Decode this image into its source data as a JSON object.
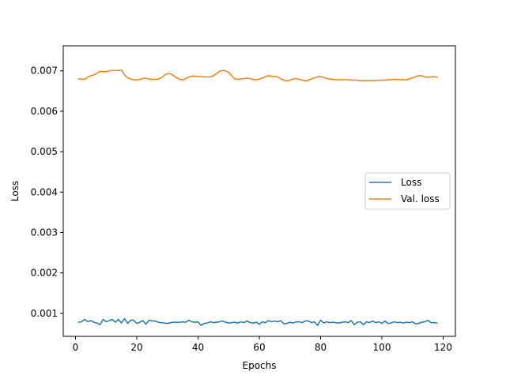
{
  "chart_data": {
    "type": "line",
    "title": "",
    "xlabel": "Epochs",
    "ylabel": "Loss",
    "xlim": [
      -4,
      124
    ],
    "ylim": [
      0.00043,
      0.00762
    ],
    "xticks": [
      0,
      20,
      40,
      60,
      80,
      100,
      120
    ],
    "yticks": [
      0.001,
      0.002,
      0.003,
      0.004,
      0.005,
      0.006,
      0.007
    ],
    "ytick_labels": [
      "0.001",
      "0.002",
      "0.003",
      "0.004",
      "0.005",
      "0.006",
      "0.007"
    ],
    "grid": false,
    "legend": "center-right",
    "series": [
      {
        "name": "Loss",
        "color": "#1f77b4",
        "x": [
          1,
          2,
          3,
          4,
          5,
          6,
          7,
          8,
          9,
          10,
          11,
          12,
          13,
          14,
          15,
          16,
          17,
          18,
          19,
          20,
          21,
          22,
          23,
          24,
          25,
          26,
          27,
          28,
          29,
          30,
          31,
          32,
          33,
          34,
          35,
          36,
          37,
          38,
          39,
          40,
          41,
          42,
          43,
          44,
          45,
          46,
          47,
          48,
          49,
          50,
          51,
          52,
          53,
          54,
          55,
          56,
          57,
          58,
          59,
          60,
          61,
          62,
          63,
          64,
          65,
          66,
          67,
          68,
          69,
          70,
          71,
          72,
          73,
          74,
          75,
          76,
          77,
          78,
          79,
          80,
          81,
          82,
          83,
          84,
          85,
          86,
          87,
          88,
          89,
          90,
          91,
          92,
          93,
          94,
          95,
          96,
          97,
          98,
          99,
          100,
          101,
          102,
          103,
          104,
          105,
          106,
          107,
          108,
          109,
          110,
          111,
          112,
          113,
          114,
          115,
          116,
          117,
          118
        ],
        "y": [
          0.00078,
          0.00079,
          0.00085,
          0.00079,
          0.00082,
          0.00078,
          0.00076,
          0.00072,
          0.00085,
          0.00079,
          0.00082,
          0.00085,
          0.00078,
          0.00085,
          0.00076,
          0.00087,
          0.00075,
          0.00083,
          0.00083,
          0.00075,
          0.00078,
          0.00082,
          0.00073,
          0.00083,
          0.00081,
          0.00081,
          0.00078,
          0.00077,
          0.00076,
          0.00075,
          0.00077,
          0.00078,
          0.00078,
          0.00078,
          0.00079,
          0.00078,
          0.00083,
          0.00079,
          0.00078,
          0.00079,
          0.0007,
          0.00075,
          0.00076,
          0.00079,
          0.00077,
          0.00078,
          0.00079,
          0.00081,
          0.00078,
          0.00076,
          0.00077,
          0.00078,
          0.00076,
          0.00079,
          0.00077,
          0.00081,
          0.00077,
          0.00076,
          0.00078,
          0.00073,
          0.00079,
          0.00077,
          0.00082,
          0.00079,
          0.00081,
          0.00079,
          0.00082,
          0.00074,
          0.00075,
          0.00078,
          0.00076,
          0.00079,
          0.00079,
          0.00077,
          0.00081,
          0.00081,
          0.00077,
          0.00079,
          0.0007,
          0.00083,
          0.00076,
          0.00079,
          0.00077,
          0.00078,
          0.00077,
          0.00076,
          0.00078,
          0.00079,
          0.00077,
          0.00082,
          0.00072,
          0.00078,
          0.00079,
          0.00072,
          0.00079,
          0.00077,
          0.00081,
          0.00077,
          0.00079,
          0.00075,
          0.00081,
          0.00075,
          0.00076,
          0.00079,
          0.00077,
          0.00078,
          0.00076,
          0.00078,
          0.00077,
          0.00079,
          0.00074,
          0.00075,
          0.00078,
          0.00079,
          0.00083,
          0.00077,
          0.00077,
          0.00076
        ]
      },
      {
        "name": "Val. loss",
        "color": "#ff7f0e",
        "x": [
          1,
          2,
          3,
          4,
          5,
          6,
          7,
          8,
          9,
          10,
          11,
          12,
          13,
          14,
          15,
          16,
          17,
          18,
          19,
          20,
          21,
          22,
          23,
          24,
          25,
          26,
          27,
          28,
          29,
          30,
          31,
          32,
          33,
          34,
          35,
          36,
          37,
          38,
          39,
          40,
          41,
          42,
          43,
          44,
          45,
          46,
          47,
          48,
          49,
          50,
          51,
          52,
          53,
          54,
          55,
          56,
          57,
          58,
          59,
          60,
          61,
          62,
          63,
          64,
          65,
          66,
          67,
          68,
          69,
          70,
          71,
          72,
          73,
          74,
          75,
          76,
          77,
          78,
          79,
          80,
          81,
          82,
          83,
          84,
          85,
          86,
          87,
          88,
          89,
          90,
          91,
          92,
          93,
          94,
          95,
          96,
          97,
          98,
          99,
          100,
          101,
          102,
          103,
          104,
          105,
          106,
          107,
          108,
          109,
          110,
          111,
          112,
          113,
          114,
          115,
          116,
          117,
          118
        ],
        "y": [
          0.0068,
          0.0068,
          0.00679,
          0.00685,
          0.00688,
          0.0069,
          0.00694,
          0.00699,
          0.00698,
          0.00698,
          0.007,
          0.00701,
          0.00701,
          0.00701,
          0.00702,
          0.0069,
          0.00683,
          0.0068,
          0.00678,
          0.00678,
          0.00679,
          0.00681,
          0.00682,
          0.0068,
          0.00679,
          0.00679,
          0.0068,
          0.00683,
          0.00689,
          0.00693,
          0.00693,
          0.00688,
          0.00683,
          0.00679,
          0.00678,
          0.00681,
          0.00685,
          0.00687,
          0.00687,
          0.00686,
          0.00686,
          0.00685,
          0.00685,
          0.00685,
          0.00688,
          0.00693,
          0.00699,
          0.00701,
          0.007,
          0.00696,
          0.00688,
          0.0068,
          0.00679,
          0.0068,
          0.00681,
          0.00682,
          0.00681,
          0.00679,
          0.00678,
          0.0068,
          0.00682,
          0.00686,
          0.00688,
          0.00687,
          0.00686,
          0.00685,
          0.0068,
          0.00677,
          0.00675,
          0.00677,
          0.0068,
          0.00681,
          0.00679,
          0.00677,
          0.00675,
          0.00677,
          0.0068,
          0.00683,
          0.00685,
          0.00686,
          0.00684,
          0.00681,
          0.0068,
          0.00679,
          0.00678,
          0.00678,
          0.00678,
          0.00678,
          0.00678,
          0.00677,
          0.00677,
          0.00677,
          0.00676,
          0.00676,
          0.00676,
          0.00676,
          0.00676,
          0.00676,
          0.00677,
          0.00677,
          0.00677,
          0.00678,
          0.00678,
          0.00679,
          0.00679,
          0.00678,
          0.00678,
          0.00678,
          0.0068,
          0.00683,
          0.00686,
          0.00688,
          0.00688,
          0.00685,
          0.00684,
          0.00685,
          0.00686,
          0.00684
        ]
      }
    ]
  }
}
